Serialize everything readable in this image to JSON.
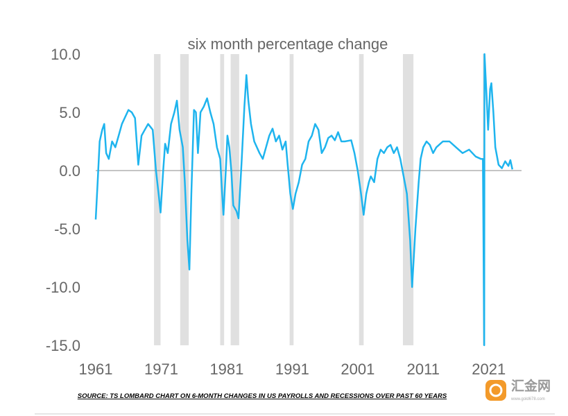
{
  "chart_data": {
    "type": "line",
    "title": "six month percentage change",
    "source": "SOURCE: TS LOMBARD CHART ON 6-MONTH CHANGES IN US PAYROLLS AND RECESSIONS OVER PAST 60 YEARS",
    "watermark": {
      "name": "汇金网",
      "url": "www.gold678.com"
    },
    "xlim": [
      1961,
      2026
    ],
    "xticks": [
      1961,
      1971,
      1981,
      1991,
      2001,
      2011,
      2021
    ],
    "ylim": [
      -15,
      10
    ],
    "yticks": [
      {
        "value": 10,
        "label": "10.0"
      },
      {
        "value": 5,
        "label": "5.0"
      },
      {
        "value": 0,
        "label": "0.0"
      },
      {
        "value": -5,
        "label": "-5.0"
      },
      {
        "value": -10,
        "label": "-10.0"
      },
      {
        "value": -15,
        "label": "-15.0"
      }
    ],
    "recessions": [
      [
        1969.9,
        1970.9
      ],
      [
        1973.9,
        1975.2
      ],
      [
        1980.0,
        1980.6
      ],
      [
        1981.6,
        1982.9
      ],
      [
        1990.6,
        1991.2
      ],
      [
        2001.2,
        2001.9
      ],
      [
        2007.9,
        2009.5
      ],
      [
        2020.1,
        2020.4
      ]
    ],
    "recession_color": "#e0e0e0",
    "series": [
      {
        "color": "#1eb4ee",
        "x": [
          1961.0,
          1961.3,
          1961.6,
          1962,
          1962.3,
          1962.6,
          1963,
          1963.5,
          1964,
          1964.5,
          1965,
          1966,
          1966.5,
          1967,
          1967.5,
          1968,
          1968.5,
          1969,
          1969.7,
          1970.2,
          1970.6,
          1970.9,
          1971.3,
          1971.6,
          1972,
          1972.5,
          1973,
          1973.4,
          1973.8,
          1974.3,
          1974.6,
          1975.0,
          1975.3,
          1975.6,
          1976,
          1976.3,
          1976.6,
          1977,
          1977.5,
          1978,
          1978.5,
          1979,
          1979.5,
          1980,
          1980.3,
          1980.5,
          1980.9,
          1981.1,
          1981.4,
          1981.7,
          1982,
          1982.5,
          1982.8,
          1983.3,
          1983.7,
          1984.0,
          1984.3,
          1984.7,
          1985.2,
          1986,
          1986.5,
          1987,
          1987.5,
          1988,
          1988.5,
          1989,
          1989.5,
          1990,
          1990.3,
          1990.7,
          1991.1,
          1991.5,
          1992,
          1992.5,
          1993,
          1993.5,
          1994,
          1994.5,
          1995,
          1995.5,
          1996,
          1996.5,
          1997,
          1997.5,
          1998,
          1998.5,
          1999,
          2000,
          2000.5,
          2001,
          2001.5,
          2001.9,
          2002.3,
          2002.7,
          2003,
          2003.5,
          2004,
          2004.5,
          2005,
          2005.5,
          2006,
          2006.5,
          2007,
          2007.5,
          2008,
          2008.5,
          2009,
          2009.3,
          2009.8,
          2010.3,
          2010.6,
          2011,
          2011.5,
          2012,
          2012.5,
          2013,
          2014,
          2015,
          2016,
          2017,
          2018,
          2019,
          2019.8,
          2020.1,
          2020.3,
          2020.35,
          2020.7,
          2020.9,
          2021.2,
          2021.4,
          2021.7,
          2022,
          2022.5,
          2023,
          2023.5,
          2024,
          2024.3,
          2024.6
        ],
        "values": [
          -4.2,
          -1,
          2.5,
          3.5,
          4,
          1.5,
          1,
          2.5,
          2,
          3,
          4,
          5.2,
          5,
          4.5,
          0.5,
          3,
          3.5,
          4,
          3.5,
          0,
          -2,
          -3.6,
          0,
          2.3,
          1.5,
          4,
          5,
          6,
          3.5,
          2,
          -1,
          -6,
          -8.5,
          -2,
          5.2,
          5,
          1.5,
          5,
          5.5,
          6.2,
          5,
          4,
          2,
          1,
          -2,
          -3.8,
          0.5,
          3,
          2,
          0,
          -3,
          -3.5,
          -4.1,
          1,
          5.5,
          8.2,
          6,
          4,
          2.5,
          1.5,
          1,
          2,
          3,
          3.6,
          2.5,
          3,
          1.8,
          2.5,
          0.5,
          -2,
          -3.3,
          -2,
          -1,
          0.5,
          1,
          2.5,
          3,
          4,
          3.5,
          1.5,
          2,
          2.8,
          3,
          2.6,
          3.3,
          2.5,
          2.5,
          2.6,
          1.5,
          0,
          -2,
          -3.8,
          -2,
          -1,
          -0.5,
          -1,
          1,
          1.8,
          1.5,
          2,
          2.2,
          1.5,
          2,
          1,
          -0.5,
          -2,
          -6,
          -10,
          -5,
          -1,
          1,
          2,
          2.5,
          2.2,
          1.5,
          2,
          2.5,
          2.5,
          2,
          1.5,
          1.8,
          1.2,
          1,
          1,
          -15,
          10,
          6,
          3.5,
          7,
          7.5,
          5,
          2,
          0.5,
          0.2,
          0.8,
          0.4,
          0.9,
          0.1
        ]
      }
    ]
  }
}
